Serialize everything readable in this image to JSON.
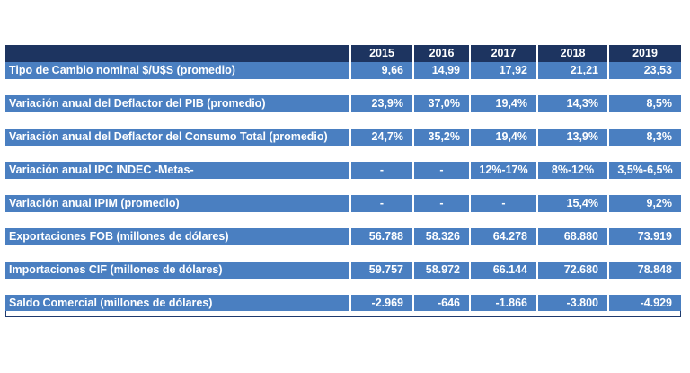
{
  "table": {
    "years": [
      "2015",
      "2016",
      "2017",
      "2018",
      "2019"
    ],
    "rows": [
      {
        "label": "Tipo de Cambio nominal $/U$S (promedio)",
        "values": [
          "9,66",
          "14,99",
          "17,92",
          "21,21",
          "23,53"
        ]
      },
      {
        "label": "Variación anual del Deflactor del PIB (promedio)",
        "values": [
          "23,9%",
          "37,0%",
          "19,4%",
          "14,3%",
          "8,5%"
        ]
      },
      {
        "label": "Variación anual del Deflactor del Consumo Total (promedio)",
        "values": [
          "24,7%",
          "35,2%",
          "19,4%",
          "13,9%",
          "8,3%"
        ]
      },
      {
        "label": "Variación anual IPC INDEC -Metas-",
        "values": [
          "-",
          "-",
          "12%-17%",
          "8%-12%",
          "3,5%-6,5%"
        ]
      },
      {
        "label": "Variación anual IPIM (promedio)",
        "values": [
          "-",
          "-",
          "-",
          "15,4%",
          "9,2%"
        ]
      },
      {
        "label": "Exportaciones FOB (millones de dólares)",
        "values": [
          "56.788",
          "58.326",
          "64.278",
          "68.880",
          "73.919"
        ]
      },
      {
        "label": "Importaciones CIF (millones de dólares)",
        "values": [
          "59.757",
          "58.972",
          "66.144",
          "72.680",
          "78.848"
        ]
      },
      {
        "label": "Saldo Comercial (millones de dólares)",
        "values": [
          "-2.969",
          "-646",
          "-1.866",
          "-3.800",
          "-4.929"
        ]
      }
    ]
  }
}
